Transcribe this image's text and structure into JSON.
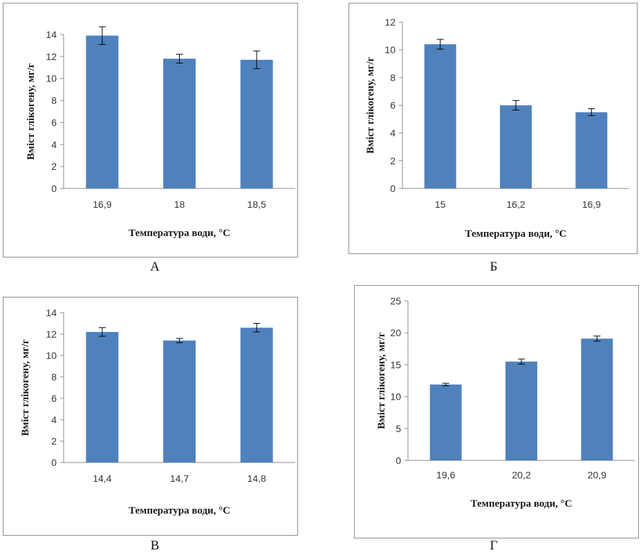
{
  "charts": {
    "axis_color": "#8a8a8a",
    "bar_color": "#4f81bd",
    "error_color": "#000000"
  },
  "chart_data": [
    {
      "type": "bar",
      "panel_label": "А",
      "xlabel": "Температура води, °С",
      "ylabel": "Вміст глікогену, мг/г",
      "categories": [
        "16,9",
        "18",
        "18,5"
      ],
      "values": [
        13.9,
        11.8,
        11.7
      ],
      "errors": [
        0.8,
        0.4,
        0.8
      ],
      "ylim": [
        0,
        14
      ],
      "yticks": [
        "0",
        "2",
        "4",
        "6",
        "8",
        "10",
        "12",
        "14"
      ],
      "grid": false
    },
    {
      "type": "bar",
      "panel_label": "Б",
      "xlabel": "Температура води, °С",
      "ylabel": "Вміст глікогену, мг/г",
      "categories": [
        "15",
        "16,2",
        "16,9"
      ],
      "values": [
        10.4,
        6.0,
        5.5
      ],
      "errors": [
        0.35,
        0.35,
        0.25
      ],
      "ylim": [
        0,
        12
      ],
      "yticks": [
        "0",
        "2",
        "4",
        "6",
        "8",
        "10",
        "12"
      ],
      "grid": false
    },
    {
      "type": "bar",
      "panel_label": "В",
      "xlabel": "Температура води, °С",
      "ylabel": "Вміст глікогену, мг/г",
      "categories": [
        "14,4",
        "14,7",
        "14,8"
      ],
      "values": [
        12.2,
        11.4,
        12.6
      ],
      "errors": [
        0.4,
        0.2,
        0.4
      ],
      "ylim": [
        0,
        14
      ],
      "yticks": [
        "0",
        "2",
        "4",
        "6",
        "8",
        "10",
        "12",
        "14"
      ],
      "grid": false
    },
    {
      "type": "bar",
      "panel_label": "Г",
      "xlabel": "Температура води, °С",
      "ylabel": "Вміст глікогену, мг/г",
      "categories": [
        "19,6",
        "20,2",
        "20,9"
      ],
      "values": [
        11.9,
        15.5,
        19.1
      ],
      "errors": [
        0.2,
        0.4,
        0.4
      ],
      "ylim": [
        0,
        25
      ],
      "yticks": [
        "0",
        "5",
        "10",
        "15",
        "20",
        "25"
      ],
      "grid": false
    }
  ]
}
